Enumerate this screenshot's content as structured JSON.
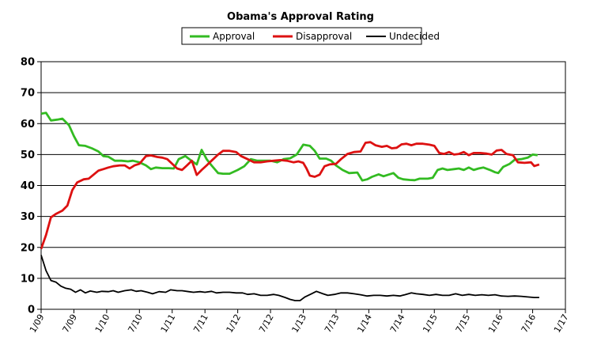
{
  "chart_data": {
    "type": "line",
    "title": "Obama's Approval Rating",
    "xlabel": "",
    "ylabel": "",
    "ylim": [
      0,
      80
    ],
    "yticks": [
      0,
      10,
      20,
      30,
      40,
      50,
      60,
      70,
      80
    ],
    "xlim": [
      0,
      16
    ],
    "xticks": [
      {
        "pos": 0,
        "label": "1/09"
      },
      {
        "pos": 1,
        "label": "7/09"
      },
      {
        "pos": 2,
        "label": "1/10"
      },
      {
        "pos": 3,
        "label": "7/10"
      },
      {
        "pos": 4,
        "label": "1/11"
      },
      {
        "pos": 5,
        "label": "7/11"
      },
      {
        "pos": 6,
        "label": "1/12"
      },
      {
        "pos": 7,
        "label": "7/12"
      },
      {
        "pos": 8,
        "label": "1/13"
      },
      {
        "pos": 9,
        "label": "7/13"
      },
      {
        "pos": 10,
        "label": "1/14"
      },
      {
        "pos": 11,
        "label": "7/14"
      },
      {
        "pos": 12,
        "label": "1/15"
      },
      {
        "pos": 13,
        "label": "7/15"
      },
      {
        "pos": 14,
        "label": "1/16"
      },
      {
        "pos": 15,
        "label": "7/16"
      },
      {
        "pos": 16,
        "label": "1/17"
      }
    ],
    "grid": true,
    "legend": "top",
    "series": [
      {
        "name": "Approval",
        "color": "#33bb22",
        "points": [
          [
            0.0,
            63.2
          ],
          [
            0.15,
            63.5
          ],
          [
            0.3,
            61.0
          ],
          [
            0.5,
            61.3
          ],
          [
            0.65,
            61.6
          ],
          [
            0.85,
            59.5
          ],
          [
            1.0,
            56.0
          ],
          [
            1.15,
            53.0
          ],
          [
            1.35,
            52.8
          ],
          [
            1.55,
            52.0
          ],
          [
            1.75,
            51.0
          ],
          [
            1.9,
            49.5
          ],
          [
            2.05,
            49.3
          ],
          [
            2.25,
            48.0
          ],
          [
            2.45,
            48.0
          ],
          [
            2.65,
            47.8
          ],
          [
            2.8,
            48.0
          ],
          [
            3.0,
            47.5
          ],
          [
            3.2,
            46.5
          ],
          [
            3.35,
            45.3
          ],
          [
            3.5,
            45.8
          ],
          [
            3.7,
            45.6
          ],
          [
            3.9,
            45.6
          ],
          [
            4.05,
            45.5
          ],
          [
            4.2,
            48.5
          ],
          [
            4.4,
            49.5
          ],
          [
            4.55,
            48.3
          ],
          [
            4.75,
            46.8
          ],
          [
            4.9,
            51.5
          ],
          [
            5.05,
            48.5
          ],
          [
            5.2,
            46.5
          ],
          [
            5.4,
            44.0
          ],
          [
            5.55,
            43.8
          ],
          [
            5.75,
            43.8
          ],
          [
            6.0,
            45.0
          ],
          [
            6.2,
            46.2
          ],
          [
            6.4,
            48.5
          ],
          [
            6.6,
            48.0
          ],
          [
            6.8,
            48.0
          ],
          [
            7.0,
            48.0
          ],
          [
            7.2,
            47.5
          ],
          [
            7.4,
            48.5
          ],
          [
            7.6,
            48.8
          ],
          [
            7.8,
            50.0
          ],
          [
            8.0,
            53.2
          ],
          [
            8.2,
            52.8
          ],
          [
            8.35,
            51.2
          ],
          [
            8.5,
            48.7
          ],
          [
            8.7,
            48.7
          ],
          [
            8.85,
            48.0
          ],
          [
            9.0,
            46.5
          ],
          [
            9.2,
            45.0
          ],
          [
            9.4,
            44.0
          ],
          [
            9.65,
            44.2
          ],
          [
            9.8,
            41.6
          ],
          [
            9.95,
            42.0
          ],
          [
            10.1,
            42.8
          ],
          [
            10.3,
            43.6
          ],
          [
            10.45,
            43.0
          ],
          [
            10.6,
            43.5
          ],
          [
            10.75,
            44.0
          ],
          [
            10.9,
            42.5
          ],
          [
            11.05,
            42.0
          ],
          [
            11.25,
            41.8
          ],
          [
            11.4,
            41.7
          ],
          [
            11.55,
            42.2
          ],
          [
            11.8,
            42.2
          ],
          [
            11.95,
            42.5
          ],
          [
            12.1,
            45.0
          ],
          [
            12.25,
            45.5
          ],
          [
            12.4,
            45.0
          ],
          [
            12.6,
            45.3
          ],
          [
            12.75,
            45.5
          ],
          [
            12.9,
            45.0
          ],
          [
            13.05,
            45.8
          ],
          [
            13.2,
            45.0
          ],
          [
            13.35,
            45.5
          ],
          [
            13.5,
            45.8
          ],
          [
            13.7,
            45.0
          ],
          [
            13.85,
            44.3
          ],
          [
            13.95,
            44.0
          ],
          [
            14.1,
            46.0
          ],
          [
            14.3,
            47.0
          ],
          [
            14.45,
            48.3
          ],
          [
            14.65,
            48.5
          ],
          [
            14.85,
            49.0
          ],
          [
            15.0,
            50.0
          ],
          [
            15.15,
            49.8
          ]
        ]
      },
      {
        "name": "Disapproval",
        "color": "#dd1111",
        "points": [
          [
            0.0,
            19.5
          ],
          [
            0.15,
            24.0
          ],
          [
            0.3,
            29.7
          ],
          [
            0.45,
            30.8
          ],
          [
            0.65,
            31.9
          ],
          [
            0.8,
            33.5
          ],
          [
            0.95,
            38.5
          ],
          [
            1.1,
            41.0
          ],
          [
            1.3,
            42.0
          ],
          [
            1.45,
            42.2
          ],
          [
            1.6,
            43.5
          ],
          [
            1.75,
            44.8
          ],
          [
            1.9,
            45.3
          ],
          [
            2.05,
            45.8
          ],
          [
            2.2,
            46.2
          ],
          [
            2.4,
            46.5
          ],
          [
            2.55,
            46.5
          ],
          [
            2.7,
            45.5
          ],
          [
            2.85,
            46.5
          ],
          [
            3.0,
            47.0
          ],
          [
            3.2,
            49.5
          ],
          [
            3.35,
            49.7
          ],
          [
            3.55,
            49.2
          ],
          [
            3.7,
            49.0
          ],
          [
            3.85,
            48.5
          ],
          [
            4.0,
            47.0
          ],
          [
            4.15,
            45.5
          ],
          [
            4.3,
            45.0
          ],
          [
            4.45,
            46.5
          ],
          [
            4.6,
            48.0
          ],
          [
            4.75,
            43.4
          ],
          [
            4.9,
            45.0
          ],
          [
            5.05,
            46.5
          ],
          [
            5.2,
            48.0
          ],
          [
            5.4,
            50.0
          ],
          [
            5.55,
            51.2
          ],
          [
            5.75,
            51.2
          ],
          [
            5.95,
            50.8
          ],
          [
            6.1,
            49.5
          ],
          [
            6.3,
            48.5
          ],
          [
            6.5,
            47.5
          ],
          [
            6.7,
            47.5
          ],
          [
            6.9,
            47.8
          ],
          [
            7.1,
            48.0
          ],
          [
            7.3,
            48.2
          ],
          [
            7.5,
            48.0
          ],
          [
            7.7,
            47.5
          ],
          [
            7.85,
            47.8
          ],
          [
            8.0,
            47.3
          ],
          [
            8.1,
            45.5
          ],
          [
            8.2,
            43.2
          ],
          [
            8.35,
            42.8
          ],
          [
            8.5,
            43.5
          ],
          [
            8.65,
            46.2
          ],
          [
            8.8,
            46.8
          ],
          [
            9.0,
            47.0
          ],
          [
            9.15,
            48.5
          ],
          [
            9.35,
            50.2
          ],
          [
            9.55,
            50.8
          ],
          [
            9.75,
            51.0
          ],
          [
            9.9,
            53.8
          ],
          [
            10.05,
            54.0
          ],
          [
            10.2,
            53.0
          ],
          [
            10.4,
            52.5
          ],
          [
            10.55,
            52.8
          ],
          [
            10.7,
            52.0
          ],
          [
            10.85,
            52.2
          ],
          [
            11.0,
            53.3
          ],
          [
            11.15,
            53.5
          ],
          [
            11.3,
            53.0
          ],
          [
            11.45,
            53.5
          ],
          [
            11.65,
            53.5
          ],
          [
            11.85,
            53.2
          ],
          [
            12.0,
            52.8
          ],
          [
            12.15,
            50.5
          ],
          [
            12.3,
            50.2
          ],
          [
            12.45,
            50.8
          ],
          [
            12.6,
            50.0
          ],
          [
            12.75,
            50.2
          ],
          [
            12.9,
            50.8
          ],
          [
            13.05,
            49.8
          ],
          [
            13.2,
            50.5
          ],
          [
            13.4,
            50.5
          ],
          [
            13.6,
            50.3
          ],
          [
            13.75,
            50.0
          ],
          [
            13.9,
            51.3
          ],
          [
            14.05,
            51.5
          ],
          [
            14.2,
            50.2
          ],
          [
            14.4,
            49.8
          ],
          [
            14.55,
            47.5
          ],
          [
            14.75,
            47.3
          ],
          [
            14.95,
            47.5
          ],
          [
            15.05,
            46.3
          ],
          [
            15.2,
            46.8
          ]
        ]
      },
      {
        "name": "Undecided",
        "color": "#000000",
        "points": [
          [
            0.0,
            17.5
          ],
          [
            0.15,
            12.5
          ],
          [
            0.3,
            9.3
          ],
          [
            0.45,
            8.8
          ],
          [
            0.6,
            7.5
          ],
          [
            0.75,
            6.8
          ],
          [
            0.9,
            6.5
          ],
          [
            1.05,
            5.5
          ],
          [
            1.2,
            6.3
          ],
          [
            1.35,
            5.3
          ],
          [
            1.5,
            5.9
          ],
          [
            1.7,
            5.5
          ],
          [
            1.85,
            5.8
          ],
          [
            2.05,
            5.7
          ],
          [
            2.2,
            6.0
          ],
          [
            2.35,
            5.5
          ],
          [
            2.55,
            6.0
          ],
          [
            2.75,
            6.3
          ],
          [
            2.9,
            5.8
          ],
          [
            3.05,
            6.0
          ],
          [
            3.25,
            5.5
          ],
          [
            3.4,
            5.0
          ],
          [
            3.6,
            5.7
          ],
          [
            3.8,
            5.5
          ],
          [
            3.95,
            6.3
          ],
          [
            4.15,
            6.0
          ],
          [
            4.3,
            6.0
          ],
          [
            4.5,
            5.7
          ],
          [
            4.65,
            5.5
          ],
          [
            4.85,
            5.7
          ],
          [
            5.0,
            5.5
          ],
          [
            5.2,
            5.8
          ],
          [
            5.35,
            5.3
          ],
          [
            5.55,
            5.5
          ],
          [
            5.75,
            5.5
          ],
          [
            5.95,
            5.3
          ],
          [
            6.15,
            5.3
          ],
          [
            6.3,
            4.8
          ],
          [
            6.5,
            5.0
          ],
          [
            6.7,
            4.5
          ],
          [
            6.9,
            4.5
          ],
          [
            7.1,
            4.8
          ],
          [
            7.25,
            4.5
          ],
          [
            7.45,
            3.8
          ],
          [
            7.6,
            3.2
          ],
          [
            7.75,
            2.8
          ],
          [
            7.9,
            2.8
          ],
          [
            8.05,
            4.0
          ],
          [
            8.25,
            5.0
          ],
          [
            8.4,
            5.8
          ],
          [
            8.6,
            5.0
          ],
          [
            8.75,
            4.5
          ],
          [
            8.95,
            4.8
          ],
          [
            9.15,
            5.3
          ],
          [
            9.35,
            5.3
          ],
          [
            9.55,
            5.0
          ],
          [
            9.75,
            4.7
          ],
          [
            9.95,
            4.3
          ],
          [
            10.15,
            4.5
          ],
          [
            10.35,
            4.5
          ],
          [
            10.55,
            4.3
          ],
          [
            10.75,
            4.5
          ],
          [
            10.95,
            4.3
          ],
          [
            11.1,
            4.7
          ],
          [
            11.3,
            5.3
          ],
          [
            11.45,
            5.0
          ],
          [
            11.65,
            4.8
          ],
          [
            11.85,
            4.5
          ],
          [
            12.05,
            4.8
          ],
          [
            12.25,
            4.5
          ],
          [
            12.45,
            4.5
          ],
          [
            12.65,
            5.0
          ],
          [
            12.85,
            4.5
          ],
          [
            13.05,
            4.8
          ],
          [
            13.25,
            4.5
          ],
          [
            13.45,
            4.7
          ],
          [
            13.65,
            4.5
          ],
          [
            13.85,
            4.7
          ],
          [
            14.05,
            4.3
          ],
          [
            14.25,
            4.2
          ],
          [
            14.45,
            4.3
          ],
          [
            14.65,
            4.2
          ],
          [
            14.85,
            4.0
          ],
          [
            15.05,
            3.8
          ],
          [
            15.2,
            3.8
          ]
        ]
      }
    ]
  }
}
